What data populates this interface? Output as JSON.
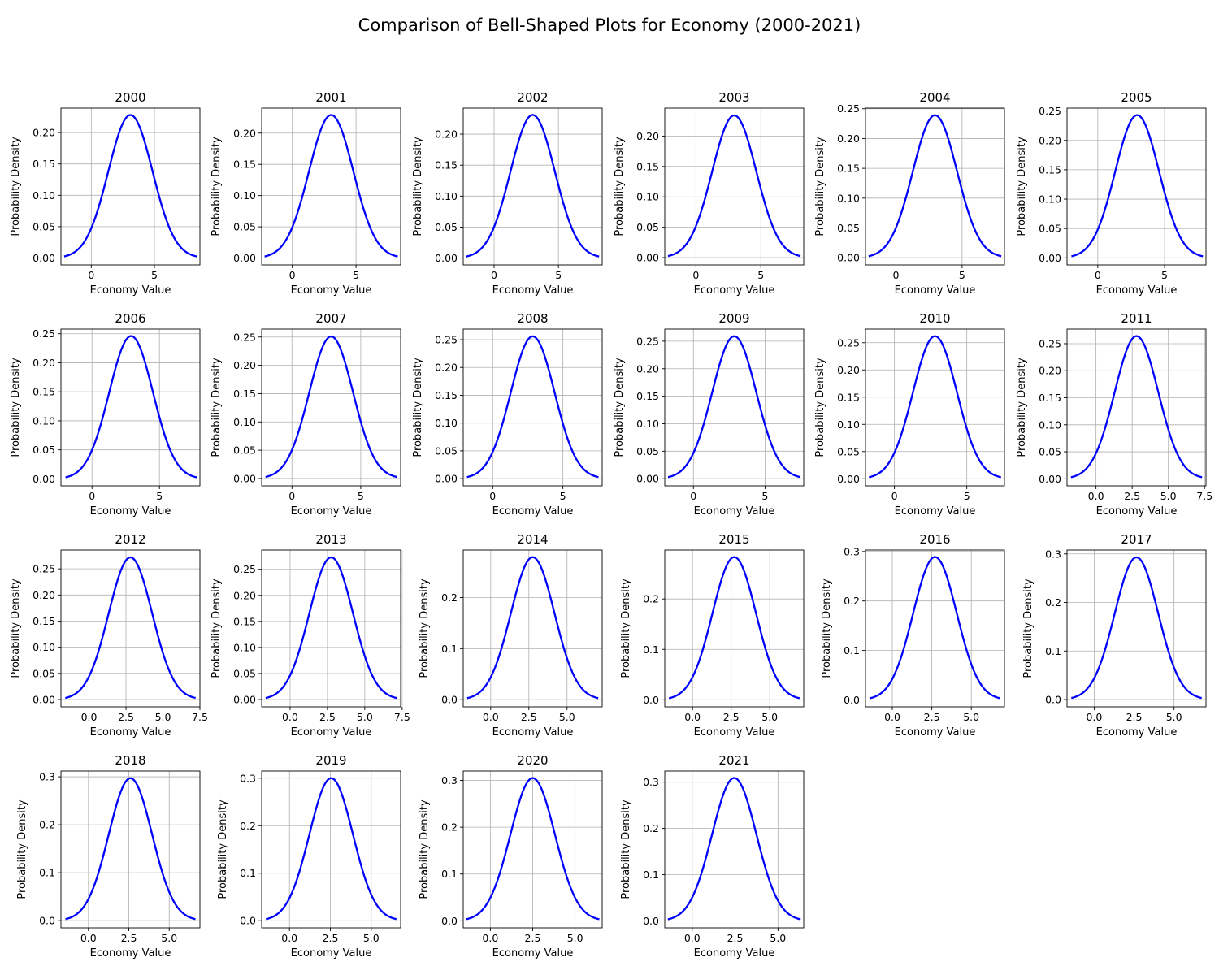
{
  "title": "Comparison of Bell-Shaped Plots for Economy (2000-2021)",
  "colors": {
    "line": "#0000ff",
    "grid": "#b0b0b0",
    "axes": "#000000"
  },
  "chart_data": [
    {
      "type": "line",
      "title": "2000",
      "xlabel": "Economy Value",
      "ylabel": "Probability Density",
      "mean": 3.1,
      "std": 1.75,
      "peak": 0.228,
      "xlim": [
        -2.4,
        8.6
      ],
      "ylim": [
        -0.011,
        0.239
      ],
      "xticks": [
        "0",
        "5"
      ],
      "xtick_values": [
        0,
        5
      ],
      "yticks": [
        "0.00",
        "0.05",
        "0.10",
        "0.15",
        "0.20"
      ],
      "ytick_values": [
        0,
        0.05,
        0.1,
        0.15,
        0.2
      ],
      "grid": true
    },
    {
      "type": "line",
      "title": "2001",
      "xlabel": "Economy Value",
      "ylabel": "Probability Density",
      "mean": 3.05,
      "std": 1.74,
      "peak": 0.229,
      "xlim": [
        -2.4,
        8.5
      ],
      "ylim": [
        -0.011,
        0.24
      ],
      "xticks": [
        "0",
        "5"
      ],
      "xtick_values": [
        0,
        5
      ],
      "yticks": [
        "0.00",
        "0.05",
        "0.10",
        "0.15",
        "0.20"
      ],
      "ytick_values": [
        0,
        0.05,
        0.1,
        0.15,
        0.2
      ],
      "grid": true
    },
    {
      "type": "line",
      "title": "2002",
      "xlabel": "Economy Value",
      "ylabel": "Probability Density",
      "mean": 3.0,
      "std": 1.72,
      "peak": 0.231,
      "xlim": [
        -2.4,
        8.4
      ],
      "ylim": [
        -0.011,
        0.242
      ],
      "xticks": [
        "0",
        "5"
      ],
      "xtick_values": [
        0,
        5
      ],
      "yticks": [
        "0.00",
        "0.05",
        "0.10",
        "0.15",
        "0.20"
      ],
      "ytick_values": [
        0,
        0.05,
        0.1,
        0.15,
        0.2
      ],
      "grid": true
    },
    {
      "type": "line",
      "title": "2003",
      "xlabel": "Economy Value",
      "ylabel": "Probability Density",
      "mean": 2.95,
      "std": 1.7,
      "peak": 0.234,
      "xlim": [
        -2.4,
        8.3
      ],
      "ylim": [
        -0.012,
        0.246
      ],
      "xticks": [
        "0",
        "5"
      ],
      "xtick_values": [
        0,
        5
      ],
      "yticks": [
        "0.00",
        "0.05",
        "0.10",
        "0.15",
        "0.20"
      ],
      "ytick_values": [
        0,
        0.05,
        0.1,
        0.15,
        0.2
      ],
      "grid": true
    },
    {
      "type": "line",
      "title": "2004",
      "xlabel": "Economy Value",
      "ylabel": "Probability Density",
      "mean": 2.95,
      "std": 1.67,
      "peak": 0.239,
      "xlim": [
        -2.3,
        8.2
      ],
      "ylim": [
        -0.012,
        0.251
      ],
      "xticks": [
        "0",
        "5"
      ],
      "xtick_values": [
        0,
        5
      ],
      "yticks": [
        "0.00",
        "0.05",
        "0.10",
        "0.15",
        "0.20",
        "0.25"
      ],
      "ytick_values": [
        0,
        0.05,
        0.1,
        0.15,
        0.2,
        0.25
      ],
      "grid": true
    },
    {
      "type": "line",
      "title": "2005",
      "xlabel": "Economy Value",
      "ylabel": "Probability Density",
      "mean": 2.95,
      "std": 1.64,
      "peak": 0.243,
      "xlim": [
        -2.3,
        8.1
      ],
      "ylim": [
        -0.012,
        0.255
      ],
      "xticks": [
        "0",
        "5"
      ],
      "xtick_values": [
        0,
        5
      ],
      "yticks": [
        "0.00",
        "0.05",
        "0.10",
        "0.15",
        "0.20",
        "0.25"
      ],
      "ytick_values": [
        0,
        0.05,
        0.1,
        0.15,
        0.2,
        0.25
      ],
      "grid": true
    },
    {
      "type": "line",
      "title": "2006",
      "xlabel": "Economy Value",
      "ylabel": "Probability Density",
      "mean": 2.9,
      "std": 1.62,
      "peak": 0.246,
      "xlim": [
        -2.3,
        8.0
      ],
      "ylim": [
        -0.012,
        0.258
      ],
      "xticks": [
        "0",
        "5"
      ],
      "xtick_values": [
        0,
        5
      ],
      "yticks": [
        "0.00",
        "0.05",
        "0.10",
        "0.15",
        "0.20",
        "0.25"
      ],
      "ytick_values": [
        0,
        0.05,
        0.1,
        0.15,
        0.2,
        0.25
      ],
      "grid": true
    },
    {
      "type": "line",
      "title": "2007",
      "xlabel": "Economy Value",
      "ylabel": "Probability Density",
      "mean": 2.85,
      "std": 1.59,
      "peak": 0.251,
      "xlim": [
        -2.2,
        7.9
      ],
      "ylim": [
        -0.013,
        0.264
      ],
      "xticks": [
        "0",
        "5"
      ],
      "xtick_values": [
        0,
        5
      ],
      "yticks": [
        "0.00",
        "0.05",
        "0.10",
        "0.15",
        "0.20",
        "0.25"
      ],
      "ytick_values": [
        0,
        0.05,
        0.1,
        0.15,
        0.2,
        0.25
      ],
      "grid": true
    },
    {
      "type": "line",
      "title": "2008",
      "xlabel": "Economy Value",
      "ylabel": "Probability Density",
      "mean": 2.85,
      "std": 1.56,
      "peak": 0.256,
      "xlim": [
        -2.1,
        7.8
      ],
      "ylim": [
        -0.013,
        0.269
      ],
      "xticks": [
        "0",
        "5"
      ],
      "xtick_values": [
        0,
        5
      ],
      "yticks": [
        "0.00",
        "0.05",
        "0.10",
        "0.15",
        "0.20",
        "0.25"
      ],
      "ytick_values": [
        0,
        0.05,
        0.1,
        0.15,
        0.2,
        0.25
      ],
      "grid": true
    },
    {
      "type": "line",
      "title": "2009",
      "xlabel": "Economy Value",
      "ylabel": "Probability Density",
      "mean": 2.85,
      "std": 1.54,
      "peak": 0.259,
      "xlim": [
        -2.0,
        7.7
      ],
      "ylim": [
        -0.013,
        0.272
      ],
      "xticks": [
        "0",
        "5"
      ],
      "xtick_values": [
        0,
        5
      ],
      "yticks": [
        "0.00",
        "0.05",
        "0.10",
        "0.15",
        "0.20",
        "0.25"
      ],
      "ytick_values": [
        0,
        0.05,
        0.1,
        0.15,
        0.2,
        0.25
      ],
      "grid": true
    },
    {
      "type": "line",
      "title": "2010",
      "xlabel": "Economy Value",
      "ylabel": "Probability Density",
      "mean": 2.8,
      "std": 1.52,
      "peak": 0.262,
      "xlim": [
        -2.0,
        7.6
      ],
      "ylim": [
        -0.013,
        0.275
      ],
      "xticks": [
        "0",
        "5"
      ],
      "xtick_values": [
        0,
        5
      ],
      "yticks": [
        "0.00",
        "0.05",
        "0.10",
        "0.15",
        "0.20",
        "0.25"
      ],
      "ytick_values": [
        0,
        0.05,
        0.1,
        0.15,
        0.2,
        0.25
      ],
      "grid": true
    },
    {
      "type": "line",
      "title": "2011",
      "xlabel": "Economy Value",
      "ylabel": "Probability Density",
      "mean": 2.8,
      "std": 1.51,
      "peak": 0.264,
      "xlim": [
        -2.0,
        7.6
      ],
      "ylim": [
        -0.013,
        0.277
      ],
      "xticks": [
        "0.0",
        "2.5",
        "5.0",
        "7.5"
      ],
      "xtick_values": [
        0,
        2.5,
        5,
        7.5
      ],
      "yticks": [
        "0.00",
        "0.05",
        "0.10",
        "0.15",
        "0.20",
        "0.25"
      ],
      "ytick_values": [
        0,
        0.05,
        0.1,
        0.15,
        0.2,
        0.25
      ],
      "grid": true
    },
    {
      "type": "line",
      "title": "2012",
      "xlabel": "Economy Value",
      "ylabel": "Probability Density",
      "mean": 2.8,
      "std": 1.47,
      "peak": 0.272,
      "xlim": [
        -1.9,
        7.5
      ],
      "ylim": [
        -0.014,
        0.286
      ],
      "xticks": [
        "0.0",
        "2.5",
        "5.0",
        "7.5"
      ],
      "xtick_values": [
        0,
        2.5,
        5,
        7.5
      ],
      "yticks": [
        "0.00",
        "0.05",
        "0.10",
        "0.15",
        "0.20",
        "0.25"
      ],
      "ytick_values": [
        0,
        0.05,
        0.1,
        0.15,
        0.2,
        0.25
      ],
      "grid": true
    },
    {
      "type": "line",
      "title": "2013",
      "xlabel": "Economy Value",
      "ylabel": "Probability Density",
      "mean": 2.75,
      "std": 1.46,
      "peak": 0.273,
      "xlim": [
        -1.9,
        7.4
      ],
      "ylim": [
        -0.014,
        0.287
      ],
      "xticks": [
        "0.0",
        "2.5",
        "5.0",
        "7.5"
      ],
      "xtick_values": [
        0,
        2.5,
        5,
        7.5
      ],
      "yticks": [
        "0.00",
        "0.05",
        "0.10",
        "0.15",
        "0.20",
        "0.25"
      ],
      "ytick_values": [
        0,
        0.05,
        0.1,
        0.15,
        0.2,
        0.25
      ],
      "grid": true
    },
    {
      "type": "line",
      "title": "2014",
      "xlabel": "Economy Value",
      "ylabel": "Probability Density",
      "mean": 2.75,
      "std": 1.43,
      "peak": 0.279,
      "xlim": [
        -1.8,
        7.3
      ],
      "ylim": [
        -0.014,
        0.293
      ],
      "xticks": [
        "0.0",
        "2.5",
        "5.0"
      ],
      "xtick_values": [
        0,
        2.5,
        5
      ],
      "yticks": [
        "0.0",
        "0.1",
        "0.2"
      ],
      "ytick_values": [
        0,
        0.1,
        0.2
      ],
      "grid": true
    },
    {
      "type": "line",
      "title": "2015",
      "xlabel": "Economy Value",
      "ylabel": "Probability Density",
      "mean": 2.7,
      "std": 1.41,
      "peak": 0.283,
      "xlim": [
        -1.8,
        7.2
      ],
      "ylim": [
        -0.014,
        0.297
      ],
      "xticks": [
        "0.0",
        "2.5",
        "5.0"
      ],
      "xtick_values": [
        0,
        2.5,
        5
      ],
      "yticks": [
        "0.0",
        "0.1",
        "0.2"
      ],
      "ytick_values": [
        0,
        0.1,
        0.2
      ],
      "grid": true
    },
    {
      "type": "line",
      "title": "2016",
      "xlabel": "Economy Value",
      "ylabel": "Probability Density",
      "mean": 2.7,
      "std": 1.38,
      "peak": 0.289,
      "xlim": [
        -1.7,
        7.1
      ],
      "ylim": [
        -0.014,
        0.303
      ],
      "xticks": [
        "0.0",
        "2.5",
        "5.0"
      ],
      "xtick_values": [
        0,
        2.5,
        5
      ],
      "yticks": [
        "0.0",
        "0.1",
        "0.2",
        "0.3"
      ],
      "ytick_values": [
        0,
        0.1,
        0.2,
        0.3
      ],
      "grid": true
    },
    {
      "type": "line",
      "title": "2017",
      "xlabel": "Economy Value",
      "ylabel": "Probability Density",
      "mean": 2.65,
      "std": 1.36,
      "peak": 0.293,
      "xlim": [
        -1.7,
        7.0
      ],
      "ylim": [
        -0.015,
        0.308
      ],
      "xticks": [
        "0.0",
        "2.5",
        "5.0"
      ],
      "xtick_values": [
        0,
        2.5,
        5
      ],
      "yticks": [
        "0.0",
        "0.1",
        "0.2",
        "0.3"
      ],
      "ytick_values": [
        0,
        0.1,
        0.2,
        0.3
      ],
      "grid": true
    },
    {
      "type": "line",
      "title": "2018",
      "xlabel": "Economy Value",
      "ylabel": "Probability Density",
      "mean": 2.6,
      "std": 1.34,
      "peak": 0.297,
      "xlim": [
        -1.7,
        6.9
      ],
      "ylim": [
        -0.015,
        0.312
      ],
      "xticks": [
        "0.0",
        "2.5",
        "5.0"
      ],
      "xtick_values": [
        0,
        2.5,
        5
      ],
      "yticks": [
        "0.0",
        "0.1",
        "0.2",
        "0.3"
      ],
      "ytick_values": [
        0,
        0.1,
        0.2,
        0.3
      ],
      "grid": true
    },
    {
      "type": "line",
      "title": "2019",
      "xlabel": "Economy Value",
      "ylabel": "Probability Density",
      "mean": 2.55,
      "std": 1.33,
      "peak": 0.3,
      "xlim": [
        -1.7,
        6.8
      ],
      "ylim": [
        -0.015,
        0.315
      ],
      "xticks": [
        "0.0",
        "2.5",
        "5.0"
      ],
      "xtick_values": [
        0,
        2.5,
        5
      ],
      "yticks": [
        "0.0",
        "0.1",
        "0.2",
        "0.3"
      ],
      "ytick_values": [
        0,
        0.1,
        0.2,
        0.3
      ],
      "grid": true
    },
    {
      "type": "line",
      "title": "2020",
      "xlabel": "Economy Value",
      "ylabel": "Probability Density",
      "mean": 2.5,
      "std": 1.31,
      "peak": 0.305,
      "xlim": [
        -1.6,
        6.6
      ],
      "ylim": [
        -0.015,
        0.32
      ],
      "xticks": [
        "0.0",
        "2.5",
        "5.0"
      ],
      "xtick_values": [
        0,
        2.5,
        5
      ],
      "yticks": [
        "0.0",
        "0.1",
        "0.2",
        "0.3"
      ],
      "ytick_values": [
        0,
        0.1,
        0.2,
        0.3
      ],
      "grid": true
    },
    {
      "type": "line",
      "title": "2021",
      "xlabel": "Economy Value",
      "ylabel": "Probability Density",
      "mean": 2.45,
      "std": 1.29,
      "peak": 0.309,
      "xlim": [
        -1.6,
        6.5
      ],
      "ylim": [
        -0.015,
        0.324
      ],
      "xticks": [
        "0.0",
        "2.5",
        "5.0"
      ],
      "xtick_values": [
        0,
        2.5,
        5
      ],
      "yticks": [
        "0.0",
        "0.1",
        "0.2",
        "0.3"
      ],
      "ytick_values": [
        0,
        0.1,
        0.2,
        0.3
      ],
      "grid": true
    }
  ]
}
